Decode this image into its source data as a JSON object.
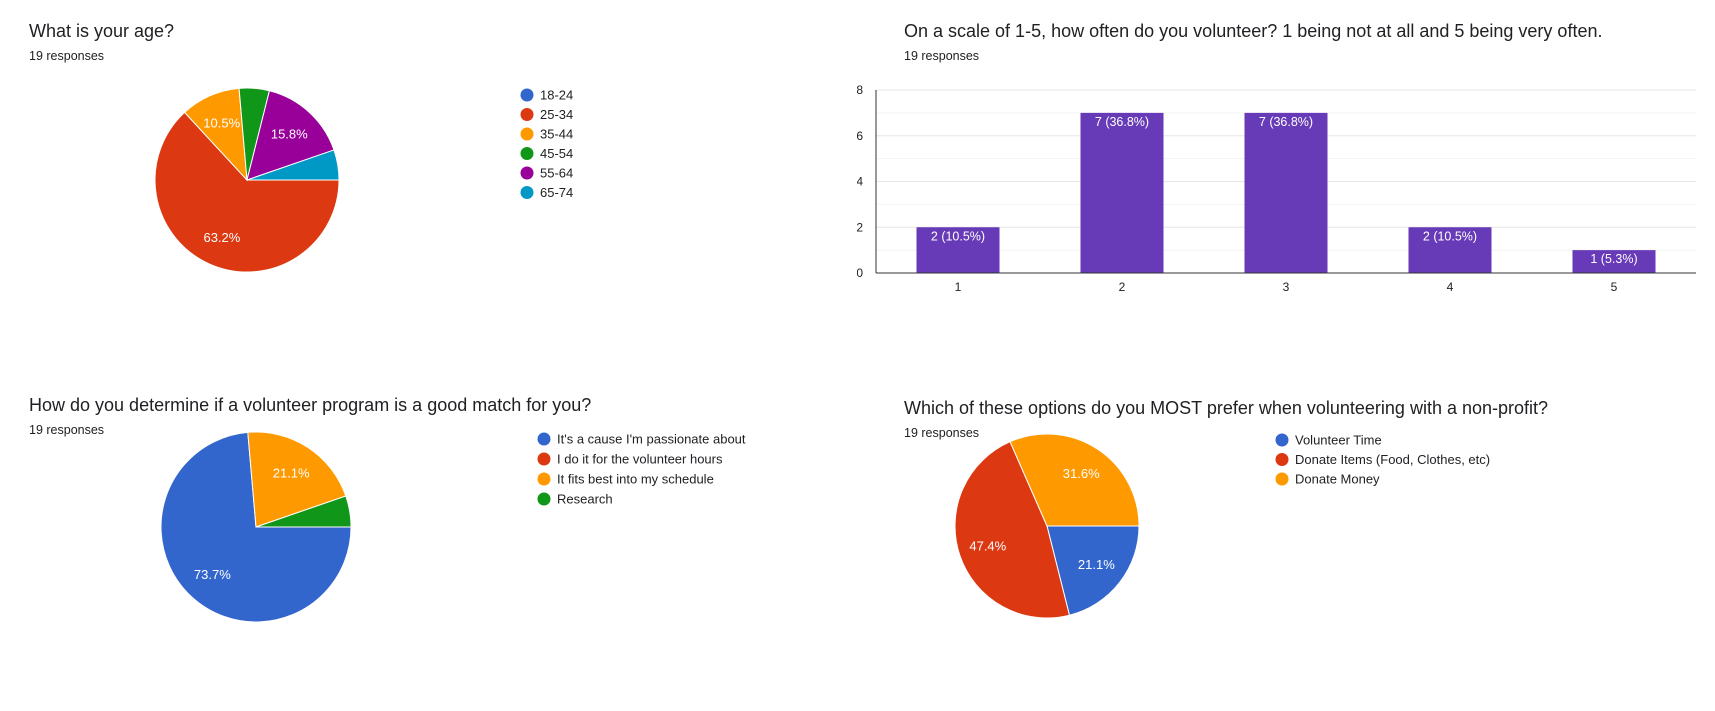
{
  "charts": [
    {
      "title": "What is your age?",
      "responses": "19 responses",
      "chart_data": {
        "type": "pie",
        "categories": [
          "18-24",
          "25-34",
          "35-44",
          "45-54",
          "55-64",
          "65-74"
        ],
        "values": [
          0,
          63.2,
          10.5,
          5.3,
          15.8,
          5.3
        ],
        "labels": [
          "",
          "63.2%",
          "10.5%",
          "",
          "15.8%",
          ""
        ],
        "colors": [
          "#3366cc",
          "#dc3912",
          "#ff9900",
          "#109618",
          "#990099",
          "#0099c6"
        ],
        "legend": "right"
      }
    },
    {
      "title": "On a scale of 1-5, how often do you volunteer? 1 being not at all and 5 being very often.",
      "responses": "19 responses",
      "chart_data": {
        "type": "bar",
        "categories": [
          "1",
          "2",
          "3",
          "4",
          "5"
        ],
        "values": [
          2,
          7,
          7,
          2,
          1
        ],
        "labels": [
          "2 (10.5%)",
          "7 (36.8%)",
          "7 (36.8%)",
          "2 (10.5%)",
          "1 (5.3%)"
        ],
        "ylim": [
          0,
          8
        ],
        "yticks": [
          0,
          2,
          4,
          6,
          8
        ],
        "color": "#673ab7",
        "grid": true
      }
    },
    {
      "title": "How do you determine if a volunteer program is a good match for you?",
      "responses": "19 responses",
      "chart_data": {
        "type": "pie",
        "categories": [
          "It's a cause I'm passionate about",
          "I do it for the volunteer hours",
          "It fits best into my schedule",
          "Research"
        ],
        "values": [
          73.7,
          0,
          21.1,
          5.3
        ],
        "labels": [
          "73.7%",
          "",
          "21.1%",
          ""
        ],
        "colors": [
          "#3366cc",
          "#dc3912",
          "#ff9900",
          "#109618"
        ],
        "legend": "right"
      }
    },
    {
      "title": "Which of these options do you MOST prefer when volunteering with a non-profit?",
      "responses": "19 responses",
      "chart_data": {
        "type": "pie",
        "categories": [
          "Volunteer Time",
          "Donate Items (Food, Clothes, etc)",
          "Donate Money"
        ],
        "values": [
          21.1,
          47.4,
          31.6
        ],
        "labels": [
          "21.1%",
          "47.4%",
          "31.6%"
        ],
        "colors": [
          "#3366cc",
          "#dc3912",
          "#ff9900"
        ],
        "legend": "right"
      }
    }
  ]
}
